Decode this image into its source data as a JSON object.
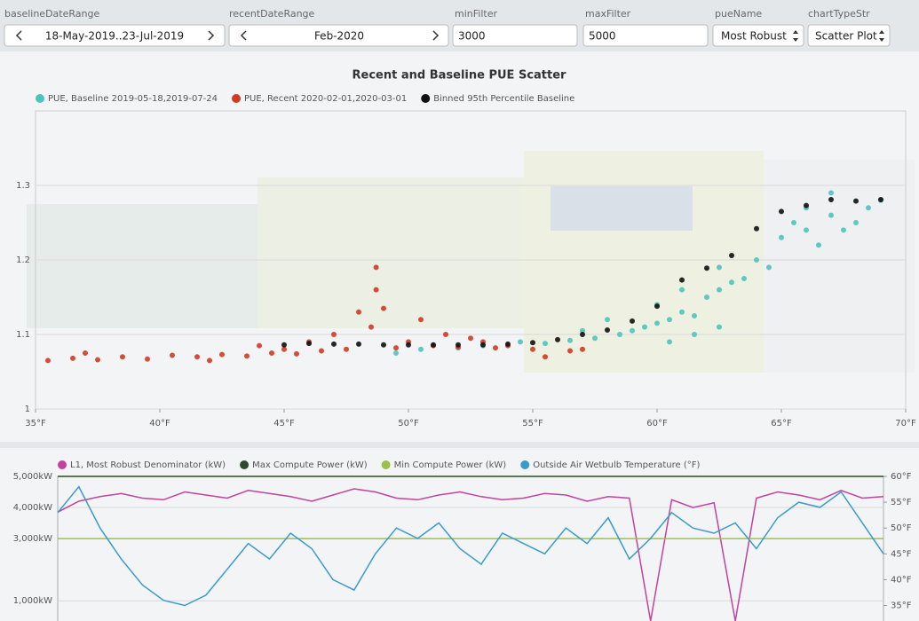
{
  "controls": [
    {
      "label": "baselineDateRange",
      "value": "18-May-2019..23-Jul-2019"
    },
    {
      "label": "recentDateRange",
      "value": "Feb-2020"
    },
    {
      "label": "minFilter",
      "value": "3000"
    },
    {
      "label": "maxFilter",
      "value": "5000"
    },
    {
      "label": "pueName",
      "value": "Most Robust"
    },
    {
      "label": "chartTypeStr",
      "value": "Scatter Plot"
    }
  ],
  "chart_data": [
    {
      "type": "scatter",
      "title": "Recent and Baseline PUE Scatter",
      "xlim": [
        35,
        70
      ],
      "xticks": [
        {
          "value": 35,
          "label": "35°F"
        },
        {
          "value": 40,
          "label": "40°F"
        },
        {
          "value": 45,
          "label": "45°F"
        },
        {
          "value": 50,
          "label": "50°F"
        },
        {
          "value": 55,
          "label": "55°F"
        },
        {
          "value": 60,
          "label": "60°F"
        },
        {
          "value": 65,
          "label": "65°F"
        },
        {
          "value": 70,
          "label": "70°F"
        }
      ],
      "ylim": [
        1,
        1.4
      ],
      "yticks": [
        1,
        1.1,
        1.2,
        1.3
      ],
      "grid": true,
      "series": [
        {
          "name": "PUE, Baseline 2019-05-18,2019-07-24",
          "color": "#4cc4bd",
          "x": [
            49.5,
            50.5,
            52,
            53,
            54.5,
            55.5,
            56.5,
            57.5,
            58.5,
            59,
            59.5,
            60,
            60.5,
            61,
            61.5,
            62,
            62.5,
            63,
            61,
            60.5,
            61.5,
            62.5,
            63.5,
            64,
            64.5,
            65,
            65.5,
            66,
            66.5,
            67,
            67.5,
            68,
            68.5,
            69,
            67,
            66,
            62.5,
            60,
            58,
            57
          ],
          "values": [
            1.075,
            1.08,
            1.082,
            1.085,
            1.09,
            1.088,
            1.092,
            1.095,
            1.1,
            1.105,
            1.11,
            1.115,
            1.12,
            1.13,
            1.125,
            1.15,
            1.16,
            1.17,
            1.16,
            1.09,
            1.1,
            1.11,
            1.175,
            1.2,
            1.19,
            1.23,
            1.25,
            1.27,
            1.22,
            1.26,
            1.24,
            1.25,
            1.27,
            1.28,
            1.29,
            1.24,
            1.19,
            1.14,
            1.12,
            1.105
          ]
        },
        {
          "name": "PUE, Recent 2020-02-01,2020-03-01",
          "color": "#d23a22",
          "x": [
            35.5,
            36.5,
            37.5,
            38.5,
            39.5,
            40.5,
            41.5,
            42.5,
            43.5,
            44.5,
            45.5,
            46,
            46.5,
            47,
            47.5,
            48,
            48.5,
            48.7,
            49,
            49.5,
            50,
            50.5,
            51,
            51.5,
            52,
            52.5,
            53,
            53.5,
            54,
            55,
            55.5,
            56.5,
            57,
            45,
            44,
            42,
            37,
            48.7
          ],
          "values": [
            1.065,
            1.068,
            1.066,
            1.07,
            1.067,
            1.072,
            1.07,
            1.073,
            1.071,
            1.075,
            1.074,
            1.09,
            1.078,
            1.1,
            1.08,
            1.13,
            1.11,
            1.16,
            1.135,
            1.082,
            1.09,
            1.12,
            1.085,
            1.1,
            1.083,
            1.095,
            1.09,
            1.082,
            1.085,
            1.08,
            1.07,
            1.078,
            1.08,
            1.08,
            1.085,
            1.065,
            1.075,
            1.19
          ]
        },
        {
          "name": "Binned 95th Percentile Baseline",
          "color": "#111111",
          "x": [
            45,
            46,
            47,
            48,
            49,
            50,
            51,
            52,
            53,
            54,
            55,
            56,
            57,
            58,
            59,
            60,
            61,
            62,
            63,
            64,
            65,
            66,
            67,
            68,
            69
          ],
          "values": [
            1.086,
            1.088,
            1.087,
            1.087,
            1.086,
            1.086,
            1.086,
            1.086,
            1.086,
            1.087,
            1.089,
            1.093,
            1.1,
            1.106,
            1.118,
            1.138,
            1.173,
            1.189,
            1.206,
            1.242,
            1.265,
            1.273,
            1.281,
            1.279,
            1.281
          ]
        }
      ]
    },
    {
      "type": "line",
      "categories": [
        null,
        null,
        null,
        null,
        null,
        null,
        null,
        null,
        null,
        null,
        null,
        null,
        null,
        null,
        null,
        null,
        null,
        null,
        null,
        null,
        null,
        null,
        null,
        null,
        null,
        null,
        null,
        null,
        null,
        null,
        null,
        null,
        null,
        null,
        null,
        null,
        null,
        null,
        null,
        null
      ],
      "ylim": [
        350,
        5000
      ],
      "yticks": [
        {
          "value": 1000,
          "label": "1,000kW"
        },
        {
          "value": 3000,
          "label": "3,000kW"
        },
        {
          "value": 4000,
          "label": "4,000kW"
        },
        {
          "value": 5000,
          "label": "5,000kW"
        }
      ],
      "y2lim": [
        32,
        60
      ],
      "y2ticks": [
        {
          "value": 35,
          "label": "35°F"
        },
        {
          "value": 40,
          "label": "40°F"
        },
        {
          "value": 45,
          "label": "45°F"
        },
        {
          "value": 50,
          "label": "50°F"
        },
        {
          "value": 55,
          "label": "55°F"
        },
        {
          "value": 60,
          "label": "60°F"
        }
      ],
      "grid": true,
      "series": [
        {
          "name": "L1, Most Robust Denominator (kW)",
          "color": "#c2439c",
          "values": [
            3850,
            4200,
            4350,
            4450,
            4300,
            4250,
            4500,
            4400,
            4300,
            4550,
            4450,
            4350,
            4200,
            4400,
            4600,
            4500,
            4300,
            4250,
            4400,
            4500,
            4350,
            4250,
            4300,
            4450,
            4400,
            4200,
            4350,
            4300,
            350,
            4250,
            4000,
            4150,
            350,
            4300,
            4500,
            4400,
            4250,
            4550,
            4300,
            4350
          ]
        },
        {
          "name": "Max Compute Power (kW)",
          "color": "#2f4a2a",
          "values": [
            5000,
            5000,
            5000,
            5000,
            5000,
            5000,
            5000,
            5000,
            5000,
            5000,
            5000,
            5000,
            5000,
            5000,
            5000,
            5000,
            5000,
            5000,
            5000,
            5000,
            5000,
            5000,
            5000,
            5000,
            5000,
            5000,
            5000,
            5000,
            5000,
            5000,
            5000,
            5000,
            5000,
            5000,
            5000,
            5000,
            5000,
            5000,
            5000,
            5000
          ]
        },
        {
          "name": "Min Compute Power (kW)",
          "color": "#9cc14a",
          "values": [
            3000,
            3000,
            3000,
            3000,
            3000,
            3000,
            3000,
            3000,
            3000,
            3000,
            3000,
            3000,
            3000,
            3000,
            3000,
            3000,
            3000,
            3000,
            3000,
            3000,
            3000,
            3000,
            3000,
            3000,
            3000,
            3000,
            3000,
            3000,
            3000,
            3000,
            3000,
            3000,
            3000,
            3000,
            3000,
            3000,
            3000,
            3000,
            3000,
            3000
          ]
        },
        {
          "name": "Outside Air Wetbulb Temperature (°F)",
          "color": "#3a9bc9",
          "axis": "y2",
          "values": [
            53,
            58,
            50,
            44,
            39,
            36,
            35,
            37,
            42,
            47,
            44,
            49,
            46,
            40,
            38,
            45,
            50,
            48,
            51,
            46,
            43,
            49,
            47,
            45,
            50,
            47,
            52,
            44,
            48,
            53,
            50,
            49,
            51,
            46,
            52,
            55,
            54,
            57,
            51,
            45
          ]
        }
      ]
    }
  ]
}
